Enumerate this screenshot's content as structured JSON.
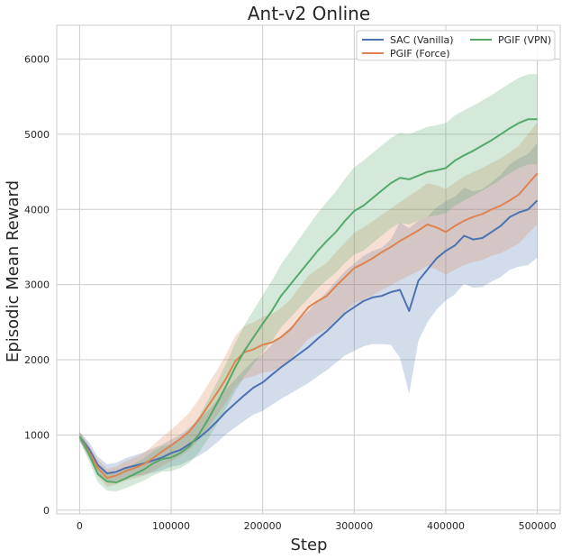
{
  "chart_data": {
    "type": "line",
    "title": "Ant-v2 Online",
    "xlabel": "Step",
    "ylabel": "Episodic Mean Reward",
    "xlim": [
      -25000,
      525000
    ],
    "ylim": [
      -50,
      6450
    ],
    "xticks": [
      0,
      100000,
      200000,
      300000,
      400000,
      500000
    ],
    "yticks": [
      0,
      1000,
      2000,
      3000,
      4000,
      5000,
      6000
    ],
    "grid": true,
    "legend_position": "top-right",
    "legend_columns": 2,
    "series": [
      {
        "name": "SAC (Vanilla)",
        "color": "#4c72b0",
        "x": [
          0,
          10000,
          20000,
          30000,
          40000,
          50000,
          60000,
          70000,
          80000,
          90000,
          100000,
          110000,
          120000,
          130000,
          140000,
          150000,
          160000,
          170000,
          180000,
          190000,
          200000,
          210000,
          220000,
          230000,
          240000,
          250000,
          260000,
          270000,
          280000,
          290000,
          300000,
          310000,
          320000,
          330000,
          340000,
          350000,
          360000,
          370000,
          380000,
          390000,
          400000,
          410000,
          420000,
          430000,
          440000,
          450000,
          460000,
          470000,
          480000,
          490000,
          500000
        ],
        "y": [
          980,
          820,
          600,
          490,
          510,
          560,
          590,
          620,
          660,
          700,
          760,
          800,
          880,
          960,
          1060,
          1180,
          1310,
          1420,
          1530,
          1630,
          1700,
          1800,
          1900,
          1990,
          2080,
          2170,
          2280,
          2380,
          2500,
          2620,
          2700,
          2780,
          2830,
          2850,
          2900,
          2930,
          2650,
          3050,
          3200,
          3350,
          3450,
          3520,
          3650,
          3600,
          3620,
          3700,
          3780,
          3900,
          3960,
          4000,
          4120
        ],
        "band": [
          60,
          90,
          110,
          120,
          120,
          130,
          140,
          150,
          160,
          170,
          180,
          200,
          220,
          240,
          260,
          280,
          300,
          320,
          340,
          360,
          380,
          400,
          420,
          440,
          460,
          480,
          500,
          520,
          540,
          560,
          580,
          600,
          620,
          640,
          700,
          900,
          1100,
          800,
          700,
          680,
          660,
          650,
          640,
          640,
          650,
          660,
          680,
          700,
          720,
          740,
          760
        ]
      },
      {
        "name": "PGIF (Force)",
        "color": "#dd8452",
        "x": [
          0,
          10000,
          20000,
          30000,
          40000,
          50000,
          60000,
          70000,
          80000,
          90000,
          100000,
          110000,
          120000,
          130000,
          140000,
          150000,
          160000,
          170000,
          180000,
          190000,
          200000,
          210000,
          220000,
          230000,
          240000,
          250000,
          260000,
          270000,
          280000,
          290000,
          300000,
          310000,
          320000,
          330000,
          340000,
          350000,
          360000,
          370000,
          380000,
          390000,
          400000,
          410000,
          420000,
          430000,
          440000,
          450000,
          460000,
          470000,
          480000,
          490000,
          500000
        ],
        "y": [
          980,
          780,
          560,
          430,
          460,
          520,
          560,
          610,
          690,
          780,
          860,
          950,
          1050,
          1200,
          1380,
          1560,
          1750,
          1980,
          2100,
          2140,
          2200,
          2230,
          2300,
          2400,
          2550,
          2700,
          2780,
          2850,
          2980,
          3100,
          3220,
          3280,
          3350,
          3430,
          3500,
          3580,
          3650,
          3720,
          3800,
          3760,
          3700,
          3780,
          3850,
          3900,
          3940,
          4000,
          4050,
          4120,
          4200,
          4340,
          4480
        ],
        "band": [
          60,
          90,
          110,
          120,
          120,
          130,
          140,
          150,
          170,
          190,
          210,
          230,
          250,
          270,
          290,
          300,
          320,
          340,
          350,
          360,
          370,
          380,
          390,
          400,
          410,
          420,
          430,
          440,
          450,
          460,
          470,
          480,
          490,
          500,
          510,
          520,
          530,
          540,
          550,
          560,
          570,
          580,
          590,
          600,
          610,
          620,
          630,
          640,
          650,
          660,
          680
        ]
      },
      {
        "name": "PGIF (VPN)",
        "color": "#55a868",
        "x": [
          0,
          10000,
          20000,
          30000,
          40000,
          50000,
          60000,
          70000,
          80000,
          90000,
          100000,
          110000,
          120000,
          130000,
          140000,
          150000,
          160000,
          170000,
          180000,
          190000,
          200000,
          210000,
          220000,
          230000,
          240000,
          250000,
          260000,
          270000,
          280000,
          290000,
          300000,
          310000,
          320000,
          330000,
          340000,
          350000,
          360000,
          370000,
          380000,
          390000,
          400000,
          410000,
          420000,
          430000,
          440000,
          450000,
          460000,
          470000,
          480000,
          490000,
          500000
        ],
        "y": [
          980,
          750,
          480,
          380,
          370,
          420,
          480,
          540,
          620,
          680,
          700,
          760,
          850,
          1000,
          1200,
          1420,
          1650,
          1900,
          2120,
          2300,
          2480,
          2650,
          2850,
          3000,
          3150,
          3300,
          3450,
          3580,
          3700,
          3850,
          3980,
          4050,
          4150,
          4250,
          4350,
          4420,
          4400,
          4450,
          4500,
          4520,
          4550,
          4650,
          4720,
          4780,
          4850,
          4920,
          5000,
          5080,
          5150,
          5200,
          5200
        ],
        "band": [
          60,
          90,
          110,
          120,
          120,
          130,
          140,
          150,
          160,
          170,
          180,
          200,
          220,
          240,
          260,
          280,
          300,
          320,
          340,
          360,
          380,
          400,
          420,
          440,
          460,
          480,
          500,
          520,
          540,
          560,
          580,
          600,
          600,
          600,
          600,
          600,
          600,
          600,
          600,
          600,
          600,
          600,
          600,
          600,
          600,
          600,
          600,
          600,
          600,
          600,
          600
        ]
      }
    ]
  }
}
